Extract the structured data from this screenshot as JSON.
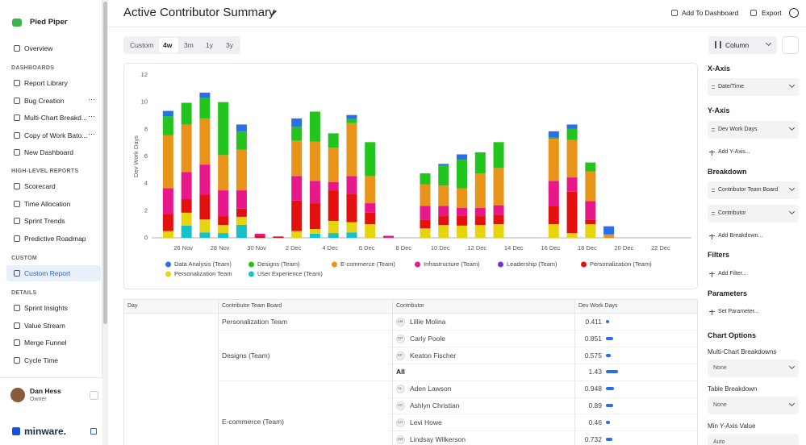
{
  "sidebar": {
    "brand": "Pied Piper",
    "nav": [
      "Overview"
    ],
    "sections": [
      {
        "title": "DASHBOARDS",
        "items": [
          "Report Library",
          "Bug Creation",
          "Multi-Chart Breakd...",
          "Copy of Work Bato...",
          "New Dashboard"
        ]
      },
      {
        "title": "HIGH-LEVEL REPORTS",
        "items": [
          "Scorecard",
          "Time Allocation",
          "Sprint Trends",
          "Predictive Roadmap"
        ]
      },
      {
        "title": "CUSTOM",
        "items": [
          "Custom Report"
        ],
        "active": 0
      },
      {
        "title": "DETAILS",
        "items": [
          "Sprint Insights",
          "Value Stream",
          "Merge Funnel",
          "Cycle Time"
        ]
      }
    ],
    "user": {
      "name": "Dan Hess",
      "role": "Owner"
    },
    "logo": "minware."
  },
  "header": {
    "title": "Active Contributor Summary",
    "actions": [
      "Add To Dashboard",
      "Export"
    ]
  },
  "toolbar": {
    "ranges": [
      "Custom",
      "4w",
      "3m",
      "1y",
      "3y"
    ],
    "active": 1,
    "chart_type": "Column"
  },
  "chart_data": {
    "type": "stacked_bar",
    "y_label": "Dev Work Days",
    "categories": [
      null,
      "26 Nov",
      null,
      "28 Nov",
      null,
      "30 Nov",
      null,
      "2 Dec",
      null,
      "4 Dec",
      null,
      "6 Dec",
      null,
      "8 Dec",
      null,
      "10 Dec",
      null,
      "12 Dec",
      null,
      "14 Dec",
      null,
      "16 Dec",
      null,
      "18 Dec",
      null,
      "20 Dec",
      null,
      "22 Dec",
      null
    ],
    "ylim": [
      0,
      12
    ],
    "yticks": [
      0,
      2,
      4,
      6,
      8,
      10,
      12
    ],
    "grid": false,
    "series": [
      {
        "name": "Data Analysis (Team)",
        "color": "#2a6fe8",
        "values": [
          0.4,
          0,
          0.4,
          0,
          0.5,
          0,
          0,
          0.6,
          0,
          0,
          0.3,
          0,
          0,
          0,
          0,
          0.1,
          0.4,
          0,
          0,
          0,
          0,
          0.45,
          0.3,
          0,
          0.6,
          0,
          0,
          0,
          0
        ]
      },
      {
        "name": "Designs (Team)",
        "color": "#22c41e",
        "values": [
          1.4,
          1.6,
          1.5,
          3.9,
          1.35,
          0,
          0,
          1.05,
          2.2,
          1.05,
          0.3,
          2.5,
          0,
          0,
          0.8,
          1.5,
          2.1,
          1.55,
          1.9,
          0,
          0,
          0.1,
          0.85,
          0.65,
          0,
          0,
          0,
          0,
          0
        ]
      },
      {
        "name": "E-commerce (Team)",
        "color": "#e8941a",
        "values": [
          3.9,
          3.5,
          3.4,
          2.6,
          3.0,
          0,
          0,
          2.6,
          2.9,
          2.55,
          3.9,
          2.0,
          0,
          0,
          1.6,
          1.5,
          1.45,
          2.55,
          2.75,
          0,
          0,
          3.1,
          2.75,
          2.2,
          0.25,
          0,
          0,
          0,
          0
        ]
      },
      {
        "name": "Infrastructure (Team)",
        "color": "#e8178a",
        "values": [
          1.9,
          2.0,
          2.2,
          1.9,
          1.35,
          0.15,
          0,
          1.8,
          1.65,
          0.6,
          1.3,
          0.7,
          0.15,
          0,
          1.0,
          0.75,
          0.55,
          0.6,
          0.7,
          0,
          0,
          1.85,
          1.05,
          1.35,
          0,
          0,
          0,
          0,
          0
        ]
      },
      {
        "name": "Leadership (Team)",
        "color": "#7b2fd6",
        "values": [
          0,
          0,
          0,
          0,
          0,
          0,
          0,
          0,
          0,
          0,
          0,
          0,
          0,
          0,
          0,
          0,
          0,
          0,
          0,
          0,
          0,
          0,
          0,
          0,
          0,
          0,
          0,
          0,
          0
        ]
      },
      {
        "name": "Personalization (Team)",
        "color": "#e3100f",
        "values": [
          1.25,
          1.0,
          1.85,
          0.65,
          0.6,
          0.15,
          0.1,
          2.25,
          1.9,
          2.25,
          2.1,
          0.85,
          0,
          0,
          0.65,
          0.65,
          0.75,
          0.65,
          0.7,
          0,
          0,
          1.35,
          3.05,
          0.35,
          0,
          0,
          0,
          0,
          0
        ]
      },
      {
        "name": "Personalization Team",
        "color": "#e6d40e",
        "values": [
          0.5,
          0.95,
          0.95,
          0.6,
          0.6,
          0,
          0,
          0.5,
          0.35,
          0.9,
          0.75,
          1.0,
          0,
          0,
          0.7,
          0.95,
          0.9,
          0.95,
          1.0,
          0,
          0,
          1.0,
          0.35,
          1.0,
          0,
          0,
          0,
          0,
          0
        ]
      },
      {
        "name": "User Experience (Team)",
        "color": "#16c2c9",
        "values": [
          0,
          0.9,
          0.4,
          0.35,
          0.95,
          0,
          0,
          0,
          0.3,
          0.35,
          0.4,
          0,
          0,
          0,
          0,
          0,
          0,
          0,
          0,
          0,
          0,
          0,
          0,
          0,
          0,
          0,
          0,
          0,
          0
        ]
      }
    ]
  },
  "table": {
    "headers": [
      "Day",
      "Contributor Team Board",
      "Contributor",
      "Dev Work Days"
    ],
    "groups": [
      {
        "team": "Personalization Team",
        "rows": [
          {
            "initials": "LM",
            "name": "Lillie Molina",
            "value": 0.411
          }
        ]
      },
      {
        "team": "Designs (Team)",
        "rows": [
          {
            "initials": "CP",
            "name": "Carly Poole",
            "value": 0.851
          },
          {
            "initials": "KF",
            "name": "Keaton Fischer",
            "value": 0.575
          },
          {
            "name": "All",
            "value": 1.43
          }
        ]
      },
      {
        "team": "E-commerce (Team)",
        "rows": [
          {
            "initials": "AL",
            "name": "Aden Lawson",
            "value": 0.948
          },
          {
            "initials": "AC",
            "name": "Ashlyn Christian",
            "value": 0.89
          },
          {
            "initials": "LH",
            "name": "Levi Howe",
            "value": 0.46
          },
          {
            "initials": "LW",
            "name": "Lindsay Wilkerson",
            "value": 0.732
          }
        ]
      }
    ]
  },
  "panel": {
    "x_axis": {
      "title": "X-Axis",
      "fields": [
        "Date/Time"
      ]
    },
    "y_axis": {
      "title": "Y-Axis",
      "fields": [
        "Dev Work Days"
      ],
      "add": "Add Y-Axis..."
    },
    "breakdown": {
      "title": "Breakdown",
      "fields": [
        "Contributor Team Board",
        "Contributor"
      ],
      "add": "Add Breakdown..."
    },
    "filters": {
      "title": "Filters",
      "add": "Add Filter..."
    },
    "parameters": {
      "title": "Parameters",
      "add": "Set Parameter..."
    },
    "chart_options": {
      "title": "Chart Options",
      "options": [
        {
          "label": "Multi-Chart Breakdowns",
          "value": "None"
        },
        {
          "label": "Table Breakdown",
          "value": "None"
        },
        {
          "label": "Min Y-Axis Value",
          "value": "Auto"
        }
      ]
    }
  }
}
